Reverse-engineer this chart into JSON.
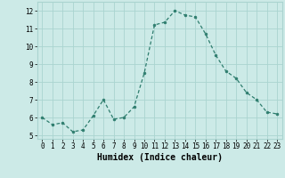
{
  "x": [
    0,
    1,
    2,
    3,
    4,
    5,
    6,
    7,
    8,
    9,
    10,
    11,
    12,
    13,
    14,
    15,
    16,
    17,
    18,
    19,
    20,
    21,
    22,
    23
  ],
  "y": [
    6.0,
    5.6,
    5.7,
    5.2,
    5.3,
    6.1,
    7.0,
    5.9,
    6.0,
    6.6,
    8.5,
    11.2,
    11.35,
    12.0,
    11.75,
    11.65,
    10.7,
    9.5,
    8.6,
    8.2,
    7.4,
    7.0,
    6.3,
    6.2
  ],
  "xlabel": "Humidex (Indice chaleur)",
  "xlim": [
    -0.5,
    23.5
  ],
  "ylim": [
    4.8,
    12.5
  ],
  "yticks": [
    5,
    6,
    7,
    8,
    9,
    10,
    11,
    12
  ],
  "xticks": [
    0,
    1,
    2,
    3,
    4,
    5,
    6,
    7,
    8,
    9,
    10,
    11,
    12,
    13,
    14,
    15,
    16,
    17,
    18,
    19,
    20,
    21,
    22,
    23
  ],
  "line_color": "#2e7d6e",
  "marker_color": "#2e7d6e",
  "bg_color": "#cceae7",
  "grid_color": "#aad4d0",
  "label_fontsize": 7,
  "tick_fontsize": 5.5
}
